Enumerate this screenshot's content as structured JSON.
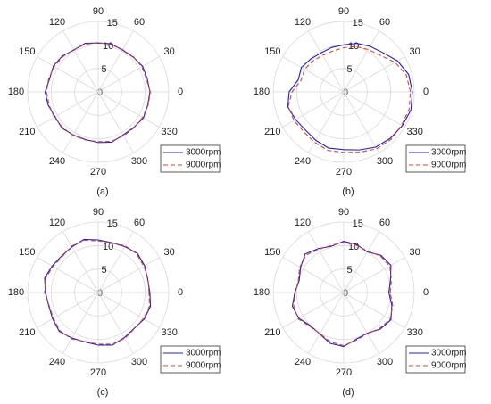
{
  "chart_data": [
    {
      "type": "polar",
      "label": "(a)",
      "rlim": [
        0,
        15
      ],
      "rticks": [
        0,
        5,
        10,
        15
      ],
      "thetaticks": [
        0,
        30,
        60,
        90,
        120,
        150,
        180,
        210,
        240,
        270,
        300,
        330
      ],
      "theta": [
        0,
        15,
        30,
        45,
        60,
        75,
        90,
        105,
        120,
        135,
        150,
        165,
        180,
        195,
        210,
        225,
        240,
        255,
        270,
        285,
        300,
        315,
        330,
        345
      ],
      "legend": "lower right",
      "series": [
        {
          "name": "3000rpm",
          "color": "#1f1fd0",
          "dash": "solid",
          "values": [
            11.0,
            10.8,
            10.9,
            10.5,
            10.3,
            10.6,
            10.4,
            10.7,
            10.3,
            10.8,
            11.0,
            10.7,
            11.3,
            11.0,
            10.6,
            10.9,
            10.6,
            10.5,
            10.8,
            11.1,
            10.6,
            10.7,
            11.1,
            10.9
          ]
        },
        {
          "name": "9000rpm",
          "color": "#d9472b",
          "dash": "dashed",
          "values": [
            11.1,
            10.6,
            10.7,
            10.6,
            10.4,
            10.4,
            10.5,
            10.5,
            10.4,
            10.6,
            10.8,
            10.9,
            11.0,
            10.8,
            10.8,
            10.7,
            10.7,
            10.6,
            10.6,
            10.9,
            10.8,
            10.8,
            10.9,
            11.0
          ]
        }
      ]
    },
    {
      "type": "polar",
      "label": "(b)",
      "rlim": [
        0,
        15
      ],
      "rticks": [
        0,
        5,
        10,
        15
      ],
      "thetaticks": [
        0,
        30,
        60,
        90,
        120,
        150,
        180,
        210,
        240,
        270,
        300,
        330
      ],
      "theta": [
        0,
        15,
        30,
        45,
        60,
        75,
        90,
        105,
        120,
        135,
        150,
        165,
        180,
        195,
        210,
        225,
        240,
        255,
        270,
        285,
        300,
        315,
        330,
        345
      ],
      "legend": "lower right",
      "series": [
        {
          "name": "3000rpm",
          "color": "#1f1fd0",
          "dash": "solid",
          "values": [
            14.6,
            14.3,
            13.2,
            11.8,
            11.2,
            10.7,
            10.0,
            9.8,
            9.6,
            9.9,
            10.4,
            10.0,
            11.6,
            12.3,
            11.8,
            11.5,
            11.9,
            12.4,
            12.3,
            12.8,
            13.6,
            14.0,
            14.4,
            14.8
          ]
        },
        {
          "name": "9000rpm",
          "color": "#d9472b",
          "dash": "dashed",
          "values": [
            14.2,
            13.8,
            12.6,
            11.0,
            10.4,
            10.0,
            9.4,
            9.0,
            9.0,
            9.3,
            9.6,
            9.4,
            11.0,
            12.2,
            12.2,
            12.0,
            12.4,
            12.9,
            12.9,
            13.3,
            14.0,
            14.3,
            14.2,
            14.4
          ]
        }
      ]
    },
    {
      "type": "polar",
      "label": "(c)",
      "rlim": [
        0,
        15
      ],
      "rticks": [
        0,
        5,
        10,
        15
      ],
      "thetaticks": [
        0,
        30,
        60,
        90,
        120,
        150,
        180,
        210,
        240,
        270,
        300,
        330
      ],
      "theta": [
        0,
        15,
        30,
        45,
        60,
        75,
        90,
        105,
        120,
        135,
        150,
        165,
        180,
        195,
        210,
        225,
        240,
        255,
        270,
        285,
        300,
        315,
        330,
        345
      ],
      "legend": "lower right",
      "series": [
        {
          "name": "3000rpm",
          "color": "#1f1fd0",
          "dash": "solid",
          "values": [
            11.0,
            10.9,
            11.4,
            11.8,
            11.3,
            11.0,
            11.2,
            11.7,
            11.2,
            11.0,
            11.3,
            11.8,
            11.2,
            10.9,
            11.2,
            11.7,
            11.2,
            10.9,
            11.2,
            11.6,
            11.1,
            10.8,
            11.3,
            11.5
          ]
        },
        {
          "name": "9000rpm",
          "color": "#d9472b",
          "dash": "dashed",
          "values": [
            10.8,
            11.0,
            11.2,
            11.6,
            11.5,
            10.9,
            11.0,
            11.5,
            11.4,
            10.8,
            11.1,
            11.6,
            11.4,
            10.8,
            11.0,
            11.5,
            11.4,
            10.8,
            11.0,
            11.4,
            11.3,
            10.9,
            11.1,
            11.3
          ]
        }
      ]
    },
    {
      "type": "polar",
      "label": "(d)",
      "rlim": [
        0,
        15
      ],
      "rticks": [
        0,
        5,
        10,
        15
      ],
      "thetaticks": [
        0,
        30,
        60,
        90,
        120,
        150,
        180,
        210,
        240,
        270,
        300,
        330
      ],
      "theta": [
        0,
        15,
        30,
        45,
        60,
        75,
        90,
        105,
        120,
        135,
        150,
        165,
        180,
        195,
        210,
        225,
        240,
        255,
        270,
        285,
        300,
        315,
        330,
        345
      ],
      "legend": "lower right",
      "series": [
        {
          "name": "3000rpm",
          "color": "#1f1fd0",
          "dash": "solid",
          "values": [
            9.6,
            10.3,
            11.6,
            11.2,
            10.0,
            10.6,
            10.9,
            10.2,
            10.8,
            11.6,
            10.6,
            9.8,
            10.4,
            11.3,
            11.0,
            10.0,
            10.2,
            11.2,
            11.5,
            10.3,
            10.0,
            11.0,
            11.6,
            10.6
          ]
        },
        {
          "name": "9000rpm",
          "color": "#d9472b",
          "dash": "dashed",
          "values": [
            9.9,
            10.5,
            11.3,
            11.0,
            10.2,
            10.4,
            10.7,
            10.4,
            10.6,
            11.3,
            10.8,
            10.0,
            10.3,
            11.0,
            11.2,
            10.2,
            10.1,
            10.9,
            11.3,
            10.5,
            10.1,
            10.8,
            11.4,
            10.8
          ]
        }
      ]
    }
  ]
}
